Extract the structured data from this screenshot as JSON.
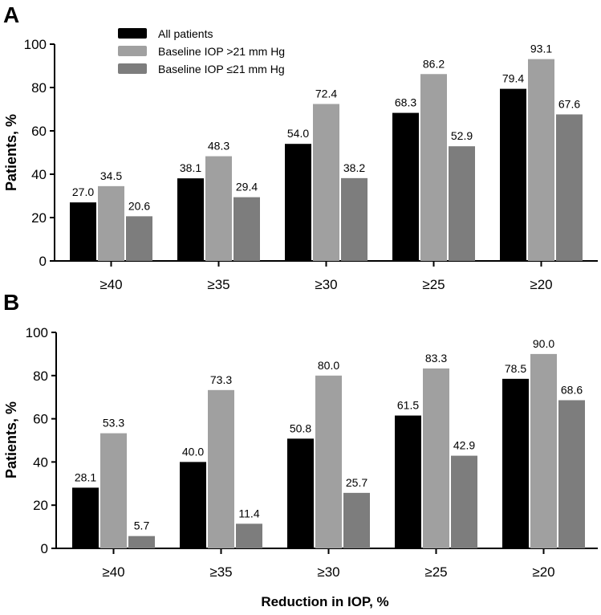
{
  "figure": {
    "x_axis_label": "Reduction in IOP, %"
  },
  "legend": [
    {
      "name": "All patients",
      "color": "#000000"
    },
    {
      "name": "Baseline IOP >21 mm Hg",
      "color": "#a0a0a0"
    },
    {
      "name": "Baseline IOP ≤21 mm Hg",
      "color": "#7d7d7d"
    }
  ],
  "chart_data": [
    {
      "type": "bar",
      "panel": "A",
      "title": "",
      "xlabel": "",
      "ylabel": "Patients, %",
      "categories": [
        "≥40",
        "≥35",
        "≥30",
        "≥25",
        "≥20"
      ],
      "ylim": [
        0,
        100
      ],
      "yticks": [
        0,
        20,
        40,
        60,
        80,
        100
      ],
      "series": [
        {
          "name": "All patients",
          "color": "#000000",
          "values": [
            27.0,
            38.1,
            54.0,
            68.3,
            79.4
          ],
          "labels": [
            "27.0",
            "38.1",
            "54.0",
            "68.3",
            "79.4"
          ]
        },
        {
          "name": "Baseline IOP >21 mm Hg",
          "color": "#a0a0a0",
          "values": [
            34.5,
            48.3,
            72.4,
            86.2,
            93.1
          ],
          "labels": [
            "34.5",
            "48.3",
            "72.4",
            "86.2",
            "93.1"
          ]
        },
        {
          "name": "Baseline IOP ≤21 mm Hg",
          "color": "#7d7d7d",
          "values": [
            20.6,
            29.4,
            38.2,
            52.9,
            67.6
          ],
          "labels": [
            "20.6",
            "29.4",
            "38.2",
            "52.9",
            "67.6"
          ]
        }
      ]
    },
    {
      "type": "bar",
      "panel": "B",
      "title": "",
      "xlabel": "Reduction in IOP, %",
      "ylabel": "Patients, %",
      "categories": [
        "≥40",
        "≥35",
        "≥30",
        "≥25",
        "≥20"
      ],
      "ylim": [
        0,
        100
      ],
      "yticks": [
        0,
        20,
        40,
        60,
        80,
        100
      ],
      "series": [
        {
          "name": "All patients",
          "color": "#000000",
          "values": [
            28.1,
            40.0,
            50.8,
            61.5,
            78.5
          ],
          "labels": [
            "28.1",
            "40.0",
            "50.8",
            "61.5",
            "78.5"
          ]
        },
        {
          "name": "Baseline IOP >21 mm Hg",
          "color": "#a0a0a0",
          "values": [
            53.3,
            73.3,
            80.0,
            83.3,
            90.0
          ],
          "labels": [
            "53.3",
            "73.3",
            "80.0",
            "83.3",
            "90.0"
          ]
        },
        {
          "name": "Baseline IOP ≤21 mm Hg",
          "color": "#7d7d7d",
          "values": [
            5.7,
            11.4,
            25.7,
            42.9,
            68.6
          ],
          "labels": [
            "5.7",
            "11.4",
            "25.7",
            "42.9",
            "68.6"
          ]
        }
      ]
    }
  ]
}
